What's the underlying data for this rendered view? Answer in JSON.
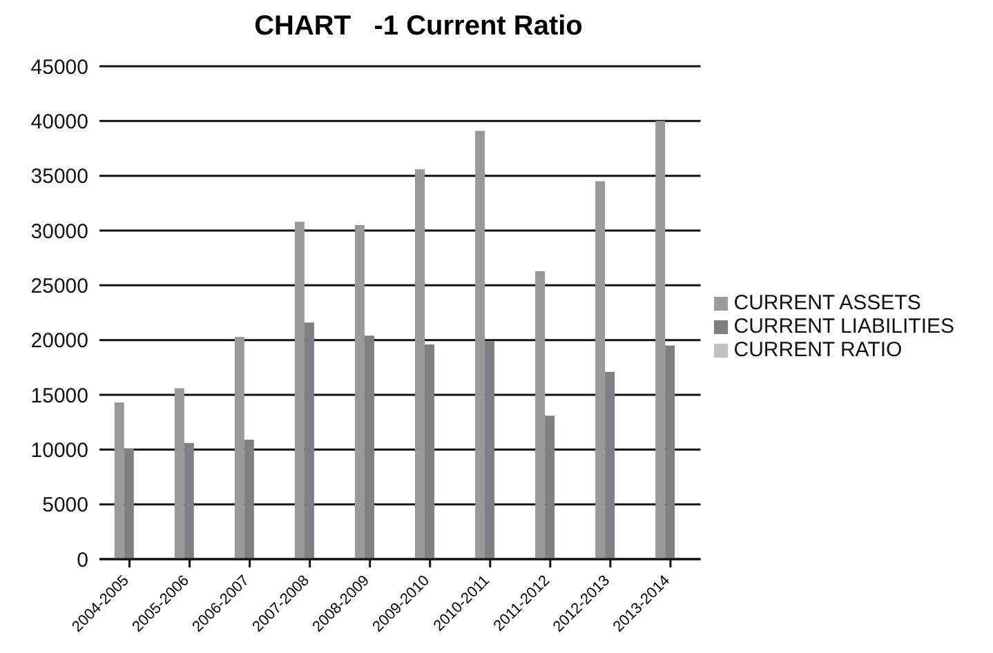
{
  "chart_data": {
    "type": "bar",
    "title": "CHART   -1 Current Ratio",
    "categories": [
      "2004-2005",
      "2005-2006",
      "2006-2007",
      "2007-2008",
      "2008-2009",
      "2009-2010",
      "2010-2011",
      "2011-2012",
      "2012-2013",
      "2013-2014"
    ],
    "series": [
      {
        "name": "CURRENT ASSETS",
        "color": "#98999b",
        "values": [
          14300,
          15600,
          20300,
          30800,
          30500,
          35600,
          39100,
          26300,
          34500,
          40000
        ]
      },
      {
        "name": "CURRENT LIABILITIES",
        "color": "#7f8083",
        "values": [
          10100,
          10600,
          10900,
          21600,
          20400,
          19600,
          19900,
          13100,
          17100,
          19500
        ]
      },
      {
        "name": "CURRENT RATIO",
        "color": "#c0c0c0",
        "values": [
          null,
          null,
          null,
          null,
          null,
          null,
          null,
          null,
          null,
          null
        ]
      }
    ],
    "ylim": [
      0,
      45000
    ],
    "yticks": [
      0,
      5000,
      10000,
      15000,
      20000,
      25000,
      30000,
      35000,
      40000,
      45000
    ],
    "grid": "y",
    "legend": "right"
  }
}
